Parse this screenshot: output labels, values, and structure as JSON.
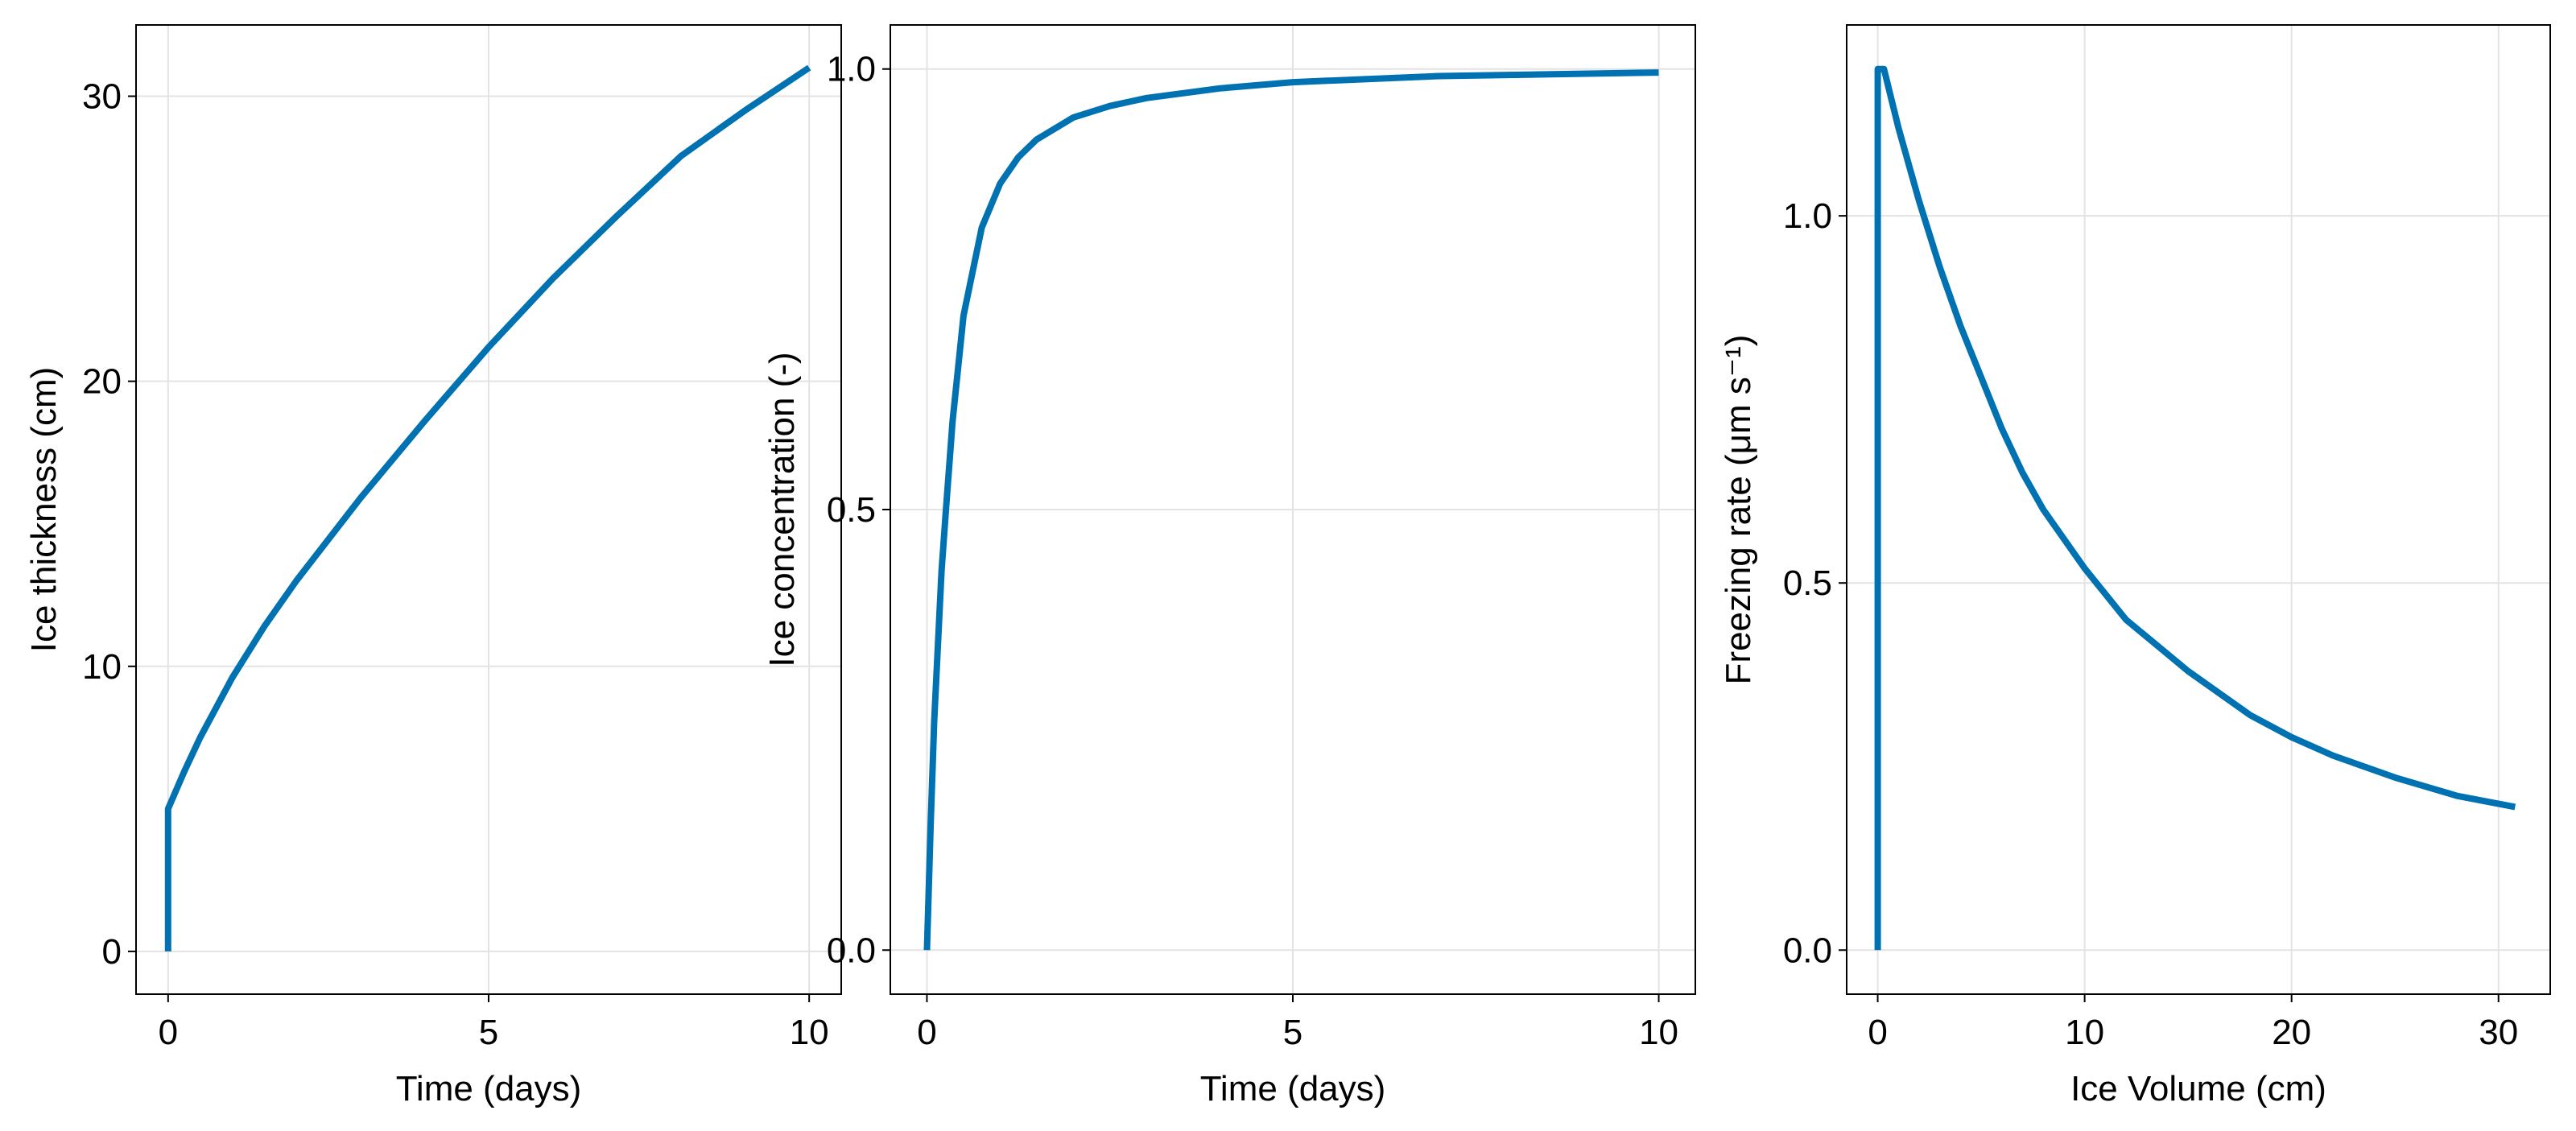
{
  "line_color": "#0072b2",
  "chart_data": [
    {
      "type": "line",
      "xlabel": "Time (days)",
      "ylabel": "Ice thickness (cm)",
      "xlim": [
        -0.5,
        10.5
      ],
      "ylim": [
        -1.5,
        32.5
      ],
      "xticks": [
        0,
        5,
        10
      ],
      "xtick_labels": [
        "0",
        "5",
        "10"
      ],
      "yticks": [
        0,
        10,
        20,
        30
      ],
      "ytick_labels": [
        "0",
        "10",
        "20",
        "30"
      ],
      "grid": true,
      "x": [
        0,
        0,
        0.25,
        0.5,
        1,
        1.5,
        2,
        3,
        4,
        5,
        6,
        7,
        8,
        9,
        10
      ],
      "y": [
        0,
        5,
        6.3,
        7.5,
        9.6,
        11.4,
        13.0,
        15.9,
        18.6,
        21.2,
        23.6,
        25.8,
        27.9,
        29.5,
        31.0
      ]
    },
    {
      "type": "line",
      "xlabel": "Time (days)",
      "ylabel": "Ice concentration (-)",
      "xlim": [
        -0.5,
        10.5
      ],
      "ylim": [
        -0.05,
        1.05
      ],
      "xticks": [
        0,
        5,
        10
      ],
      "xtick_labels": [
        "0",
        "5",
        "10"
      ],
      "yticks": [
        0,
        0.5,
        1
      ],
      "ytick_labels": [
        "0.0",
        "0.5",
        "1.0"
      ],
      "grid": true,
      "x": [
        0,
        0.05,
        0.1,
        0.2,
        0.26,
        0.35,
        0.5,
        0.75,
        1,
        1.25,
        1.5,
        2,
        2.5,
        3,
        4,
        5,
        7,
        10
      ],
      "y": [
        0,
        0.14,
        0.26,
        0.43,
        0.5,
        0.6,
        0.72,
        0.82,
        0.87,
        0.9,
        0.92,
        0.945,
        0.958,
        0.967,
        0.978,
        0.985,
        0.992,
        0.996
      ]
    },
    {
      "type": "line",
      "xlabel": "Ice Volume (cm)",
      "ylabel": "Freezing rate (μm s⁻¹)",
      "xlim": [
        -1.5,
        32.5
      ],
      "ylim": [
        -0.06,
        1.26
      ],
      "xticks": [
        0,
        10,
        20,
        30
      ],
      "xtick_labels": [
        "0",
        "10",
        "20",
        "30"
      ],
      "yticks": [
        0,
        0.5,
        1
      ],
      "ytick_labels": [
        "0.0",
        "0.5",
        "1.0"
      ],
      "grid": true,
      "x": [
        0,
        0,
        0.3,
        1,
        2,
        3,
        4,
        5,
        6,
        7,
        8,
        10,
        12,
        15,
        18,
        20,
        22,
        25,
        28,
        30.8
      ],
      "y": [
        0,
        1.2,
        1.2,
        1.12,
        1.02,
        0.93,
        0.85,
        0.78,
        0.71,
        0.65,
        0.6,
        0.52,
        0.45,
        0.38,
        0.32,
        0.29,
        0.265,
        0.235,
        0.21,
        0.195
      ]
    }
  ]
}
